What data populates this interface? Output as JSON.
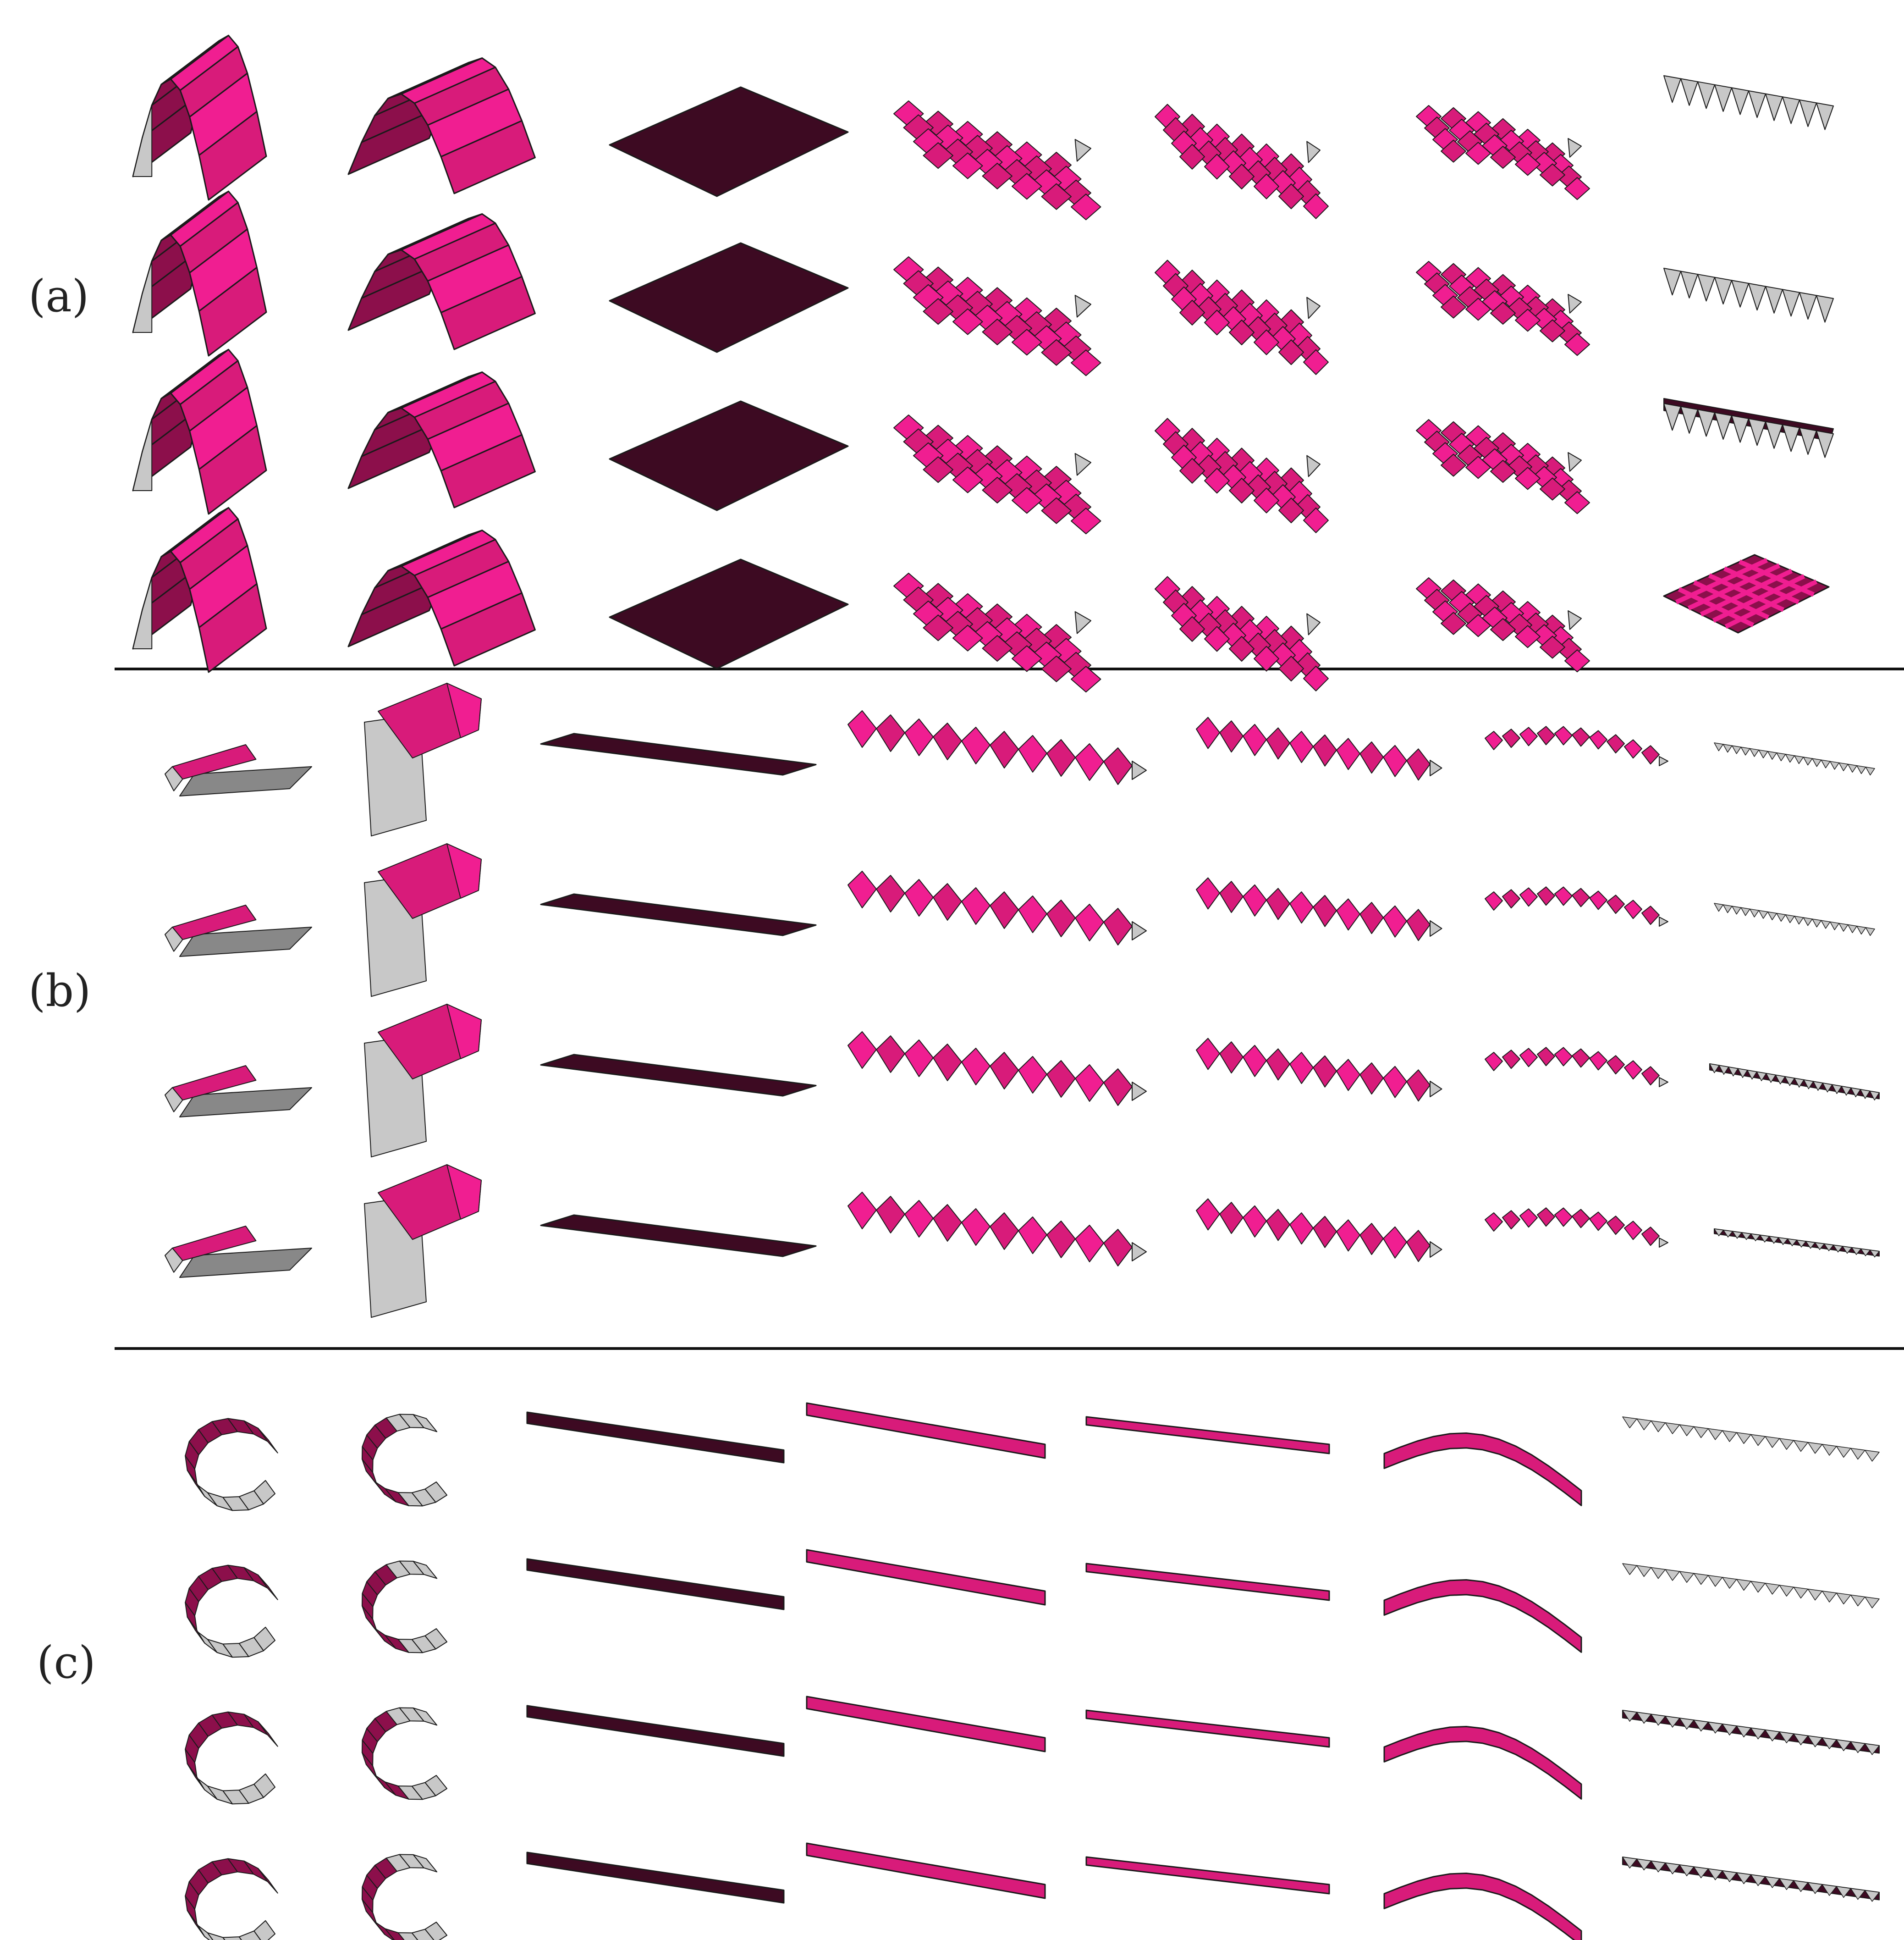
{
  "figure": {
    "panels": [
      {
        "label": "(a)",
        "shape": "arch"
      },
      {
        "label": "(b)",
        "shape": "roll"
      },
      {
        "label": "(c)",
        "shape": "ring"
      }
    ],
    "rows_per_panel": 4,
    "columns": 7,
    "column_styles": [
      "target-smooth",
      "target-smooth-2",
      "flat-sheet",
      "folded-pattern",
      "folded-pattern-small",
      "folded-pattern-curved",
      "pattern-end"
    ],
    "colors": {
      "magenta": "#d81b7a",
      "magenta_light": "#f01e91",
      "magenta_dark": "#8c0f4b",
      "flat_dark": "#3d0a22",
      "grey": "#c8c8c8",
      "grey_dark": "#888888",
      "line": "#1a1a1a"
    }
  }
}
